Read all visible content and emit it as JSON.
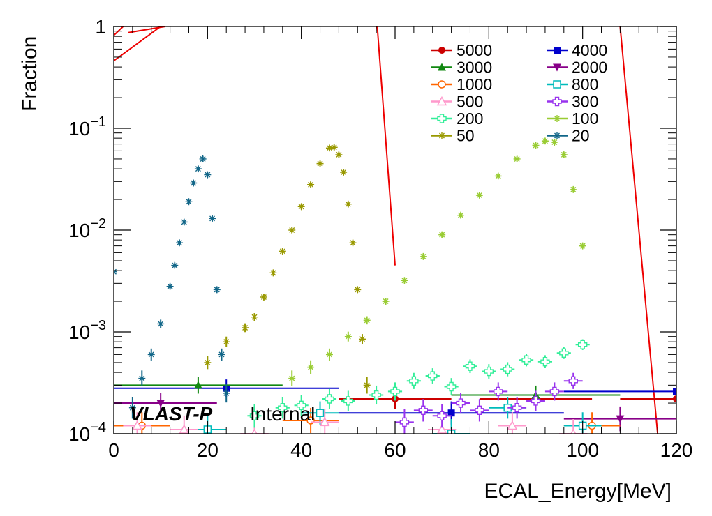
{
  "chart_data": {
    "type": "scatter",
    "title": "",
    "xlabel": "ECAL_Energy[MeV]",
    "ylabel": "Fraction",
    "xlim": [
      0,
      120
    ],
    "ylim": [
      0.0001,
      1
    ],
    "y_scale": "log",
    "x_ticks": [
      "0",
      "20",
      "40",
      "60",
      "80",
      "100",
      "120"
    ],
    "y_ticks": [
      {
        "base": "10",
        "exp": "−4",
        "value": 0.0001
      },
      {
        "base": "10",
        "exp": "−3",
        "value": 0.001
      },
      {
        "base": "10",
        "exp": "−2",
        "value": 0.01
      },
      {
        "base": "10",
        "exp": "−1",
        "value": 0.1
      },
      {
        "base": "1",
        "exp": "",
        "value": 1
      }
    ],
    "brand": {
      "name": "VLAST-P",
      "tag": "Internal"
    },
    "legend_position": "top-right",
    "series": [
      {
        "name": "5000",
        "color": "#cc0000",
        "marker": "circle-filled",
        "x": [
          60,
          90,
          120
        ],
        "y": [
          0.00022,
          0.00022,
          0.00022
        ],
        "xerr": 12
      },
      {
        "name": "4000",
        "color": "#0000cc",
        "marker": "square-filled",
        "x": [
          24,
          72,
          120
        ],
        "y": [
          0.00028,
          0.00016,
          0.00026
        ],
        "xerr": 24
      },
      {
        "name": "3000",
        "color": "#118811",
        "marker": "triangle-up-filled",
        "x": [
          18,
          90
        ],
        "y": [
          0.0003,
          0.00024
        ],
        "xerr": 18
      },
      {
        "name": "2000",
        "color": "#880088",
        "marker": "triangle-down-filled",
        "x": [
          10,
          108
        ],
        "y": [
          0.0002,
          0.00014
        ],
        "xerr": 12
      },
      {
        "name": "1000",
        "color": "#ff6600",
        "marker": "circle-open",
        "x": [
          6,
          42,
          102
        ],
        "y": [
          0.00012,
          0.000135,
          0.00012
        ],
        "xerr": 6
      },
      {
        "name": "800",
        "color": "#00bbbb",
        "marker": "square-open",
        "x": [
          20,
          44,
          72,
          84,
          100
        ],
        "y": [
          0.00011,
          0.00016,
          0.0001,
          0.00018,
          0.00012
        ],
        "xerr": 4
      },
      {
        "name": "500",
        "color": "#ff99cc",
        "marker": "triangle-up-open",
        "x": [
          5,
          15,
          30,
          45,
          70,
          85,
          98
        ],
        "y": [
          0.00012,
          0.00011,
          0.0001,
          0.00013,
          0.00011,
          0.00012,
          0.0001
        ],
        "xerr": 3
      },
      {
        "name": "300",
        "color": "#9933ee",
        "marker": "cross-open",
        "x": [
          62,
          66,
          70,
          74,
          78,
          82,
          86,
          90,
          94,
          98
        ],
        "y": [
          0.00013,
          0.00017,
          0.00015,
          0.0002,
          0.00017,
          0.00026,
          0.00018,
          0.00021,
          0.00026,
          0.00033
        ],
        "xerr": 2
      },
      {
        "name": "200",
        "color": "#33ee99",
        "marker": "cross-open",
        "x": [
          30,
          36,
          40,
          46,
          50,
          56,
          60,
          64,
          68,
          72,
          76,
          80,
          84,
          88,
          92,
          96,
          100
        ],
        "y": [
          0.00015,
          0.00018,
          0.00019,
          0.00022,
          0.00021,
          0.00024,
          0.00026,
          0.00033,
          0.00037,
          0.00029,
          0.00046,
          0.00041,
          0.00043,
          0.00053,
          0.00051,
          0.00062,
          0.00075
        ],
        "xerr": 1.5
      },
      {
        "name": "100",
        "color": "#99cc33",
        "marker": "star",
        "x": [
          38,
          42,
          46,
          50,
          54,
          58,
          62,
          66,
          70,
          74,
          78,
          82,
          86,
          90,
          92,
          94,
          96,
          98,
          100
        ],
        "y": [
          0.00035,
          0.00045,
          0.0006,
          0.0009,
          0.0013,
          0.002,
          0.0032,
          0.0055,
          0.009,
          0.014,
          0.022,
          0.034,
          0.05,
          0.068,
          0.075,
          0.073,
          0.055,
          0.025,
          0.007
        ],
        "xerr": 0.5
      },
      {
        "name": "50",
        "color": "#999900",
        "marker": "star",
        "x": [
          20,
          24,
          28,
          30,
          32,
          34,
          36,
          38,
          40,
          42,
          44,
          46,
          47,
          48,
          49,
          50,
          51,
          52,
          53,
          54
        ],
        "y": [
          0.0005,
          0.0008,
          0.0011,
          0.0014,
          0.0022,
          0.0038,
          0.0062,
          0.01,
          0.017,
          0.028,
          0.045,
          0.064,
          0.065,
          0.055,
          0.037,
          0.018,
          0.0075,
          0.0026,
          0.00085,
          0.0003
        ],
        "xerr": 0.25
      },
      {
        "name": "20",
        "color": "#116688",
        "marker": "star",
        "x": [
          0,
          4,
          6,
          8,
          10,
          12,
          13,
          14,
          15,
          16,
          17,
          18,
          19,
          20,
          21,
          22,
          23,
          24
        ],
        "y": [
          0.0039,
          0.00018,
          0.00035,
          0.0006,
          0.0012,
          0.0028,
          0.0045,
          0.0075,
          0.012,
          0.019,
          0.029,
          0.04,
          0.05,
          0.035,
          0.013,
          0.0026,
          0.0006,
          0.00025
        ],
        "xerr": 0.25
      }
    ],
    "fit_curves": [
      {
        "color": "#ee0000",
        "x": [
          0,
          10
        ],
        "y": [
          0.46,
          1.0
        ]
      },
      {
        "color": "#ee0000",
        "x": [
          0,
          2
        ],
        "y": [
          0.82,
          1.0
        ]
      },
      {
        "color": "#ee0000",
        "x": [
          3,
          11
        ],
        "y": [
          0.87,
          1.0
        ]
      },
      {
        "color": "#ee0000",
        "x": [
          56.2,
          60
        ],
        "y": [
          1.0,
          0.0045
        ]
      },
      {
        "color": "#ee0000",
        "x": [
          108,
          116
        ],
        "y": [
          1.0,
          0.0001
        ]
      }
    ]
  }
}
